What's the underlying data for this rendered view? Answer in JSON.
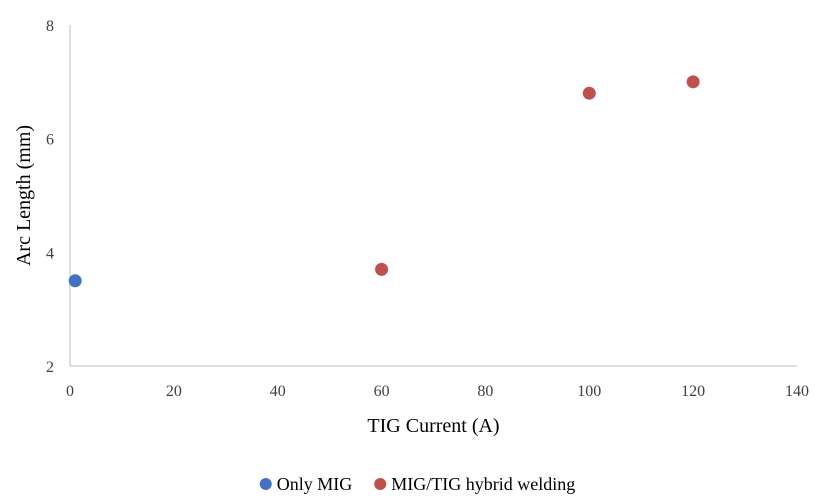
{
  "chart_data": {
    "type": "scatter",
    "xlabel": "TIG Current (A)",
    "ylabel": "Arc Length (mm)",
    "xlim": [
      0,
      140
    ],
    "ylim": [
      2,
      8
    ],
    "xticks": [
      0,
      20,
      40,
      60,
      80,
      100,
      120,
      140
    ],
    "yticks": [
      2,
      4,
      6,
      8
    ],
    "xtick_labels": [
      "0",
      "20",
      "40",
      "60",
      "80",
      "100",
      "120",
      "140"
    ],
    "ytick_labels": [
      "2",
      "4",
      "6",
      "8"
    ],
    "grid": false,
    "legend_position": "bottom",
    "series": [
      {
        "name": "Only MIG",
        "color": "#4472C4",
        "points": [
          {
            "x": 1,
            "y": 3.5
          }
        ]
      },
      {
        "name": "MIG/TIG hybrid welding",
        "color": "#C0504D",
        "points": [
          {
            "x": 60,
            "y": 3.7
          },
          {
            "x": 100,
            "y": 6.8
          },
          {
            "x": 120,
            "y": 7.0
          }
        ]
      }
    ]
  }
}
